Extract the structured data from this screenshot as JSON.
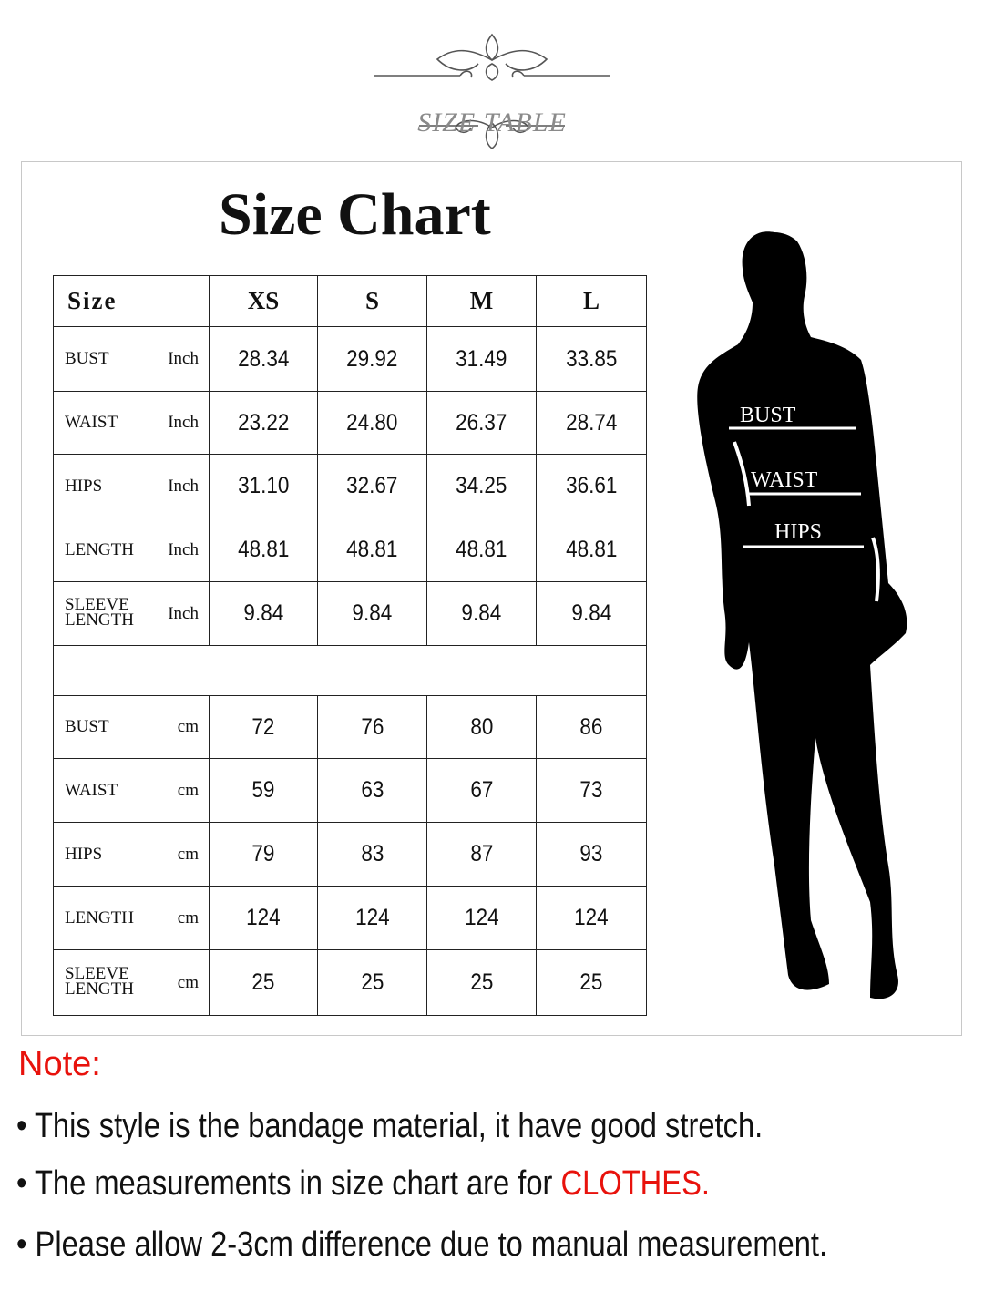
{
  "logo": {
    "text": "SIZE TABLE"
  },
  "title": "Size Chart",
  "table": {
    "header": [
      "Size",
      "XS",
      "S",
      "M",
      "L"
    ],
    "inch_rows": [
      {
        "measure": "BUST",
        "unit": "Inch",
        "values": [
          "28.34",
          "29.92",
          "31.49",
          "33.85"
        ]
      },
      {
        "measure": "WAIST",
        "unit": "Inch",
        "values": [
          "23.22",
          "24.80",
          "26.37",
          "28.74"
        ]
      },
      {
        "measure": "HIPS",
        "unit": "Inch",
        "values": [
          "31.10",
          "32.67",
          "34.25",
          "36.61"
        ]
      },
      {
        "measure": "LENGTH",
        "unit": "Inch",
        "values": [
          "48.81",
          "48.81",
          "48.81",
          "48.81"
        ]
      },
      {
        "measure": "SLEEVE LENGTH",
        "unit": "Inch",
        "values": [
          "9.84",
          "9.84",
          "9.84",
          "9.84"
        ]
      }
    ],
    "cm_rows": [
      {
        "measure": "BUST",
        "unit": "cm",
        "values": [
          "72",
          "76",
          "80",
          "86"
        ]
      },
      {
        "measure": "WAIST",
        "unit": "cm",
        "values": [
          "59",
          "63",
          "67",
          "73"
        ]
      },
      {
        "measure": "HIPS",
        "unit": "cm",
        "values": [
          "79",
          "83",
          "87",
          "93"
        ]
      },
      {
        "measure": "LENGTH",
        "unit": "cm",
        "values": [
          "124",
          "124",
          "124",
          "124"
        ]
      },
      {
        "measure": "SLEEVE LENGTH",
        "unit": "cm",
        "values": [
          "25",
          "25",
          "25",
          "25"
        ]
      }
    ]
  },
  "figure": {
    "labels": [
      "BUST",
      "WAIST",
      "HIPS"
    ]
  },
  "notes": {
    "heading": "Note:",
    "items": [
      {
        "text": "This style is the bandage material, it have good stretch.",
        "highlight": ""
      },
      {
        "text": "The measurements in size chart are for ",
        "highlight": "CLOTHES."
      },
      {
        "text": "Please allow 2-3cm difference due to manual measurement.",
        "highlight": ""
      }
    ]
  },
  "colors": {
    "accent_red": "#e8120c",
    "logo_gray": "#8a8a8a"
  }
}
